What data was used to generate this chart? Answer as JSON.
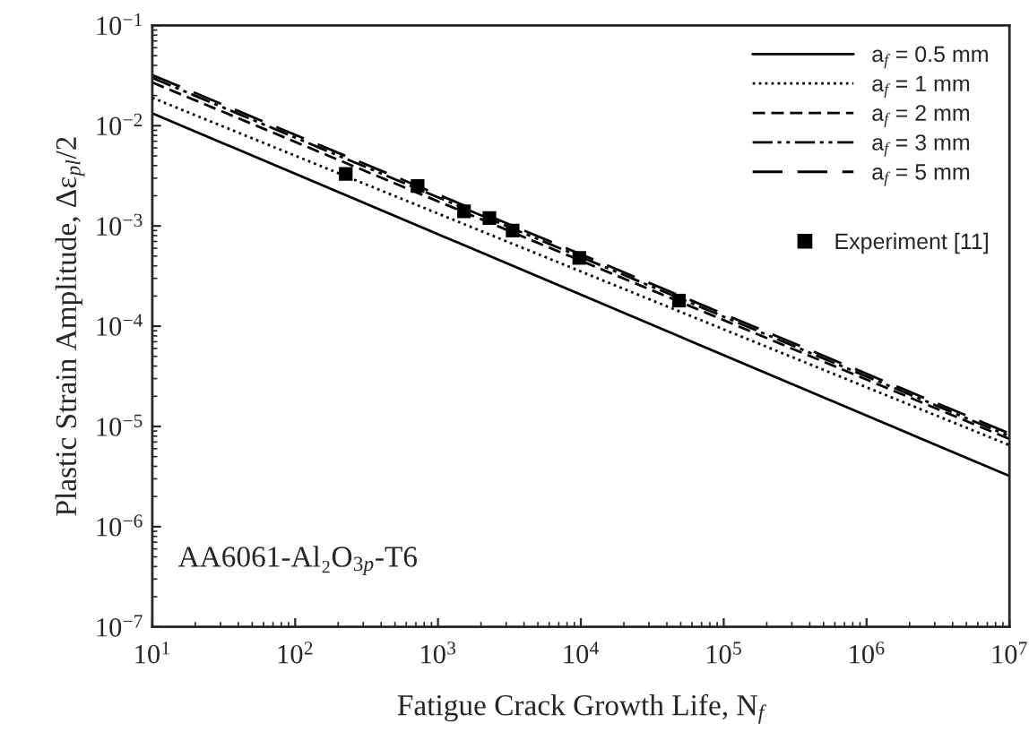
{
  "chart_data": {
    "type": "line",
    "xlabel": "Fatigue Crack Growth Life, N$_{f}$",
    "ylabel": "Plastic Strain Amplitude, Δε$_{pl}$/2",
    "annotations": [
      "AA6061-Al₂O$_{3p}$-T6"
    ],
    "log": "xy",
    "xlim": [
      10,
      10000000
    ],
    "ylim": [
      1e-07,
      0.1
    ],
    "xticks": [
      {
        "value": 10,
        "label": "10$^{1}$"
      },
      {
        "value": 100,
        "label": "10$^{2}$"
      },
      {
        "value": 1000,
        "label": "10$^{3}$"
      },
      {
        "value": 10000,
        "label": "10$^{4}$"
      },
      {
        "value": 100000,
        "label": "10$^{5}$"
      },
      {
        "value": 1000000,
        "label": "10$^{6}$"
      },
      {
        "value": 10000000,
        "label": "10$^{7}$"
      }
    ],
    "yticks": [
      {
        "value": 1e-07,
        "label": "10$^{−7}$"
      },
      {
        "value": 1e-06,
        "label": "10$^{−6}$"
      },
      {
        "value": 1e-05,
        "label": "10$^{−5}$"
      },
      {
        "value": 0.0001,
        "label": "10$^{−4}$"
      },
      {
        "value": 0.001,
        "label": "10$^{−3}$"
      },
      {
        "value": 0.01,
        "label": "10$^{−2}$"
      },
      {
        "value": 0.1,
        "label": "10$^{−1}$"
      }
    ],
    "legend": "top right",
    "series": [
      {
        "name": "a$_{f}$ = 0.5 mm",
        "line_style": "solid",
        "color": "#000000",
        "x": [
          10,
          10000000
        ],
        "values": [
          0.0133,
          3.2e-06
        ]
      },
      {
        "name": "a$_{f}$ = 1 mm",
        "line_style": "dotted",
        "color": "#000000",
        "x": [
          10,
          10000000
        ],
        "values": [
          0.019,
          6.5e-06
        ]
      },
      {
        "name": "a$_{f}$ = 2 mm",
        "line_style": "dashed",
        "color": "#000000",
        "x": [
          10,
          10000000
        ],
        "values": [
          0.027,
          7.5e-06
        ]
      },
      {
        "name": "a$_{f}$ = 3 mm",
        "line_style": "dashdotdot",
        "color": "#000000",
        "x": [
          10,
          10000000
        ],
        "values": [
          0.03,
          8e-06
        ]
      },
      {
        "name": "a$_{f}$ = 5 mm",
        "line_style": "longdash",
        "color": "#000000",
        "x": [
          10,
          10000000
        ],
        "values": [
          0.032,
          8.5e-06
        ]
      },
      {
        "name": "Experiment [11]",
        "type": "scatter",
        "marker": "square",
        "color": "#000000",
        "x": [
          226,
          720,
          1520,
          2290,
          3330,
          9750,
          48600
        ],
        "values": [
          0.0033,
          0.0025,
          0.0014,
          0.0012,
          0.0009,
          0.00048,
          0.00018
        ]
      }
    ]
  }
}
